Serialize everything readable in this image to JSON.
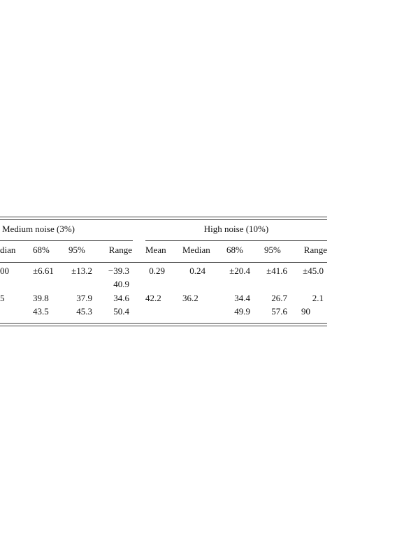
{
  "table": {
    "group_headers": [
      "Medium noise (3%)",
      "High noise (10%)"
    ],
    "columns": [
      "dian",
      "68%",
      "95%",
      "Range",
      "Mean",
      "Median",
      "68%",
      "95%",
      "Range"
    ],
    "rows": [
      [
        "00",
        "±6.61",
        "±13.2",
        "−39.3",
        "0.29",
        "0.24",
        "±20.4",
        "±41.6",
        "±45.0"
      ],
      [
        null,
        null,
        null,
        "40.9",
        null,
        null,
        null,
        null,
        null
      ],
      [
        "5",
        "39.8",
        "37.9",
        "34.6",
        "42.2",
        "36.2",
        "34.4",
        "26.7",
        "2.1"
      ],
      [
        null,
        "43.5",
        "45.3",
        "50.4",
        null,
        null,
        "49.9",
        "57.6",
        "90"
      ]
    ]
  }
}
